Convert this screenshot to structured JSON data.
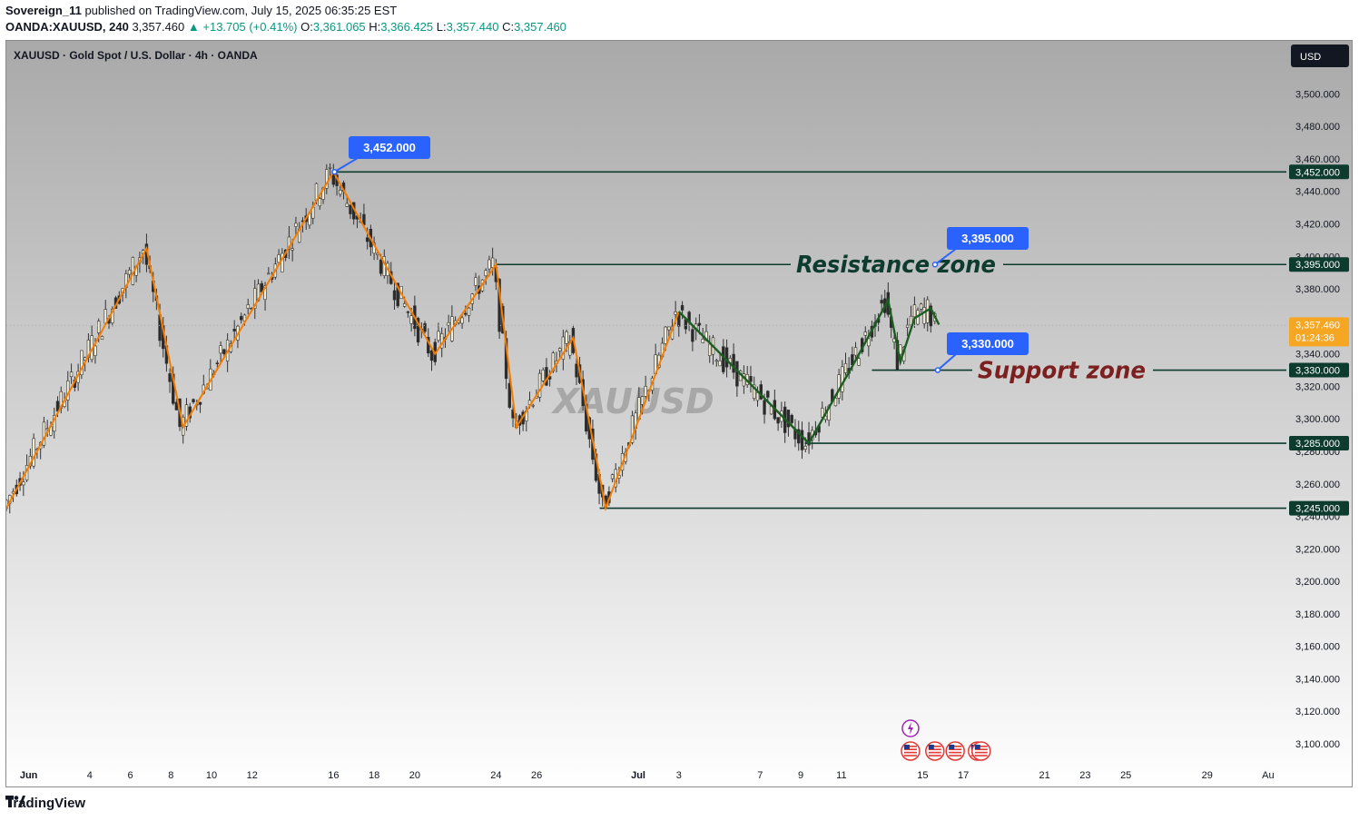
{
  "header": {
    "author": "Sovereign_11",
    "published_text": "published on TradingView.com, July 15, 2025 06:35:25 EST",
    "symbol": "OANDA:XAUUSD, 240",
    "last_price": "3,357.460",
    "change": "▲ +13.705 (+0.41%)",
    "o_label": "O:",
    "o_value": "3,361.065",
    "h_label": "H:",
    "h_value": "3,366.425",
    "l_label": "L:",
    "l_value": "3,357.440",
    "c_label": "C:",
    "c_value": "3,357.460"
  },
  "footer": {
    "brand": "TradingView"
  },
  "colors": {
    "bull_wave": "#f57c00",
    "bear_wave": "#1b5e20",
    "level_line": "#0d3b2e",
    "callout": "#2962ff",
    "support_text": "#7b1f1f",
    "resistance_text": "#0d3b2e",
    "price_line": "#f5a623"
  },
  "chart_data": {
    "type": "candlestick",
    "title": "XAUUSD · Gold Spot / U.S. Dollar · 4h · OANDA",
    "watermark": "XAUUSD",
    "currency": "USD",
    "ylim": [
      3085,
      3515
    ],
    "y_ticks": [
      3100,
      3120,
      3140,
      3160,
      3180,
      3200,
      3220,
      3240,
      3260,
      3280,
      3300,
      3320,
      3340,
      3360,
      3380,
      3400,
      3420,
      3440,
      3460,
      3480,
      3500
    ],
    "x_ticks": [
      {
        "label": "Jun",
        "day": 0
      },
      {
        "label": "4",
        "day": 3
      },
      {
        "label": "6",
        "day": 5
      },
      {
        "label": "8",
        "day": 7
      },
      {
        "label": "10",
        "day": 9
      },
      {
        "label": "12",
        "day": 11
      },
      {
        "label": "16",
        "day": 15
      },
      {
        "label": "18",
        "day": 17
      },
      {
        "label": "20",
        "day": 19
      },
      {
        "label": "24",
        "day": 23
      },
      {
        "label": "26",
        "day": 25
      },
      {
        "label": "Jul",
        "day": 30
      },
      {
        "label": "3",
        "day": 32
      },
      {
        "label": "7",
        "day": 36
      },
      {
        "label": "9",
        "day": 38
      },
      {
        "label": "11",
        "day": 40
      },
      {
        "label": "15",
        "day": 44
      },
      {
        "label": "17",
        "day": 46
      },
      {
        "label": "21",
        "day": 50
      },
      {
        "label": "23",
        "day": 52
      },
      {
        "label": "25",
        "day": 54
      },
      {
        "label": "29",
        "day": 58
      },
      {
        "label": "Au",
        "day": 61
      }
    ],
    "x_domain": [
      -1.1,
      61.9
    ],
    "current_price": {
      "value": 3357.46,
      "label": "3,357.460",
      "countdown": "01:24:36"
    },
    "levels": [
      {
        "value": 3452,
        "label": "3,452.000",
        "from_day": 15,
        "callout": "3,452.000",
        "zone": ""
      },
      {
        "value": 3395,
        "label": "3,395.000",
        "from_day": 23,
        "callout": "3,395.000",
        "zone": "Resistance zone"
      },
      {
        "value": 3330,
        "label": "3,330.000",
        "from_day": 41.5,
        "callout": "3,330.000",
        "zone": "Support zone"
      },
      {
        "value": 3285,
        "label": "3,285.000",
        "from_day": 38.2,
        "callout": "",
        "zone": ""
      },
      {
        "value": 3245,
        "label": "3,245.000",
        "from_day": 28.1,
        "callout": "",
        "zone": ""
      }
    ],
    "zigzag_orange": [
      {
        "day": -1.1,
        "price": 3245
      },
      {
        "day": 5.8,
        "price": 3405
      },
      {
        "day": 7.6,
        "price": 3295
      },
      {
        "day": 15.0,
        "price": 3452
      },
      {
        "day": 20.0,
        "price": 3340
      },
      {
        "day": 23.0,
        "price": 3395
      },
      {
        "day": 24.0,
        "price": 3295
      },
      {
        "day": 26.8,
        "price": 3350
      },
      {
        "day": 28.4,
        "price": 3245
      },
      {
        "day": 32.0,
        "price": 3366
      }
    ],
    "zigzag_green": [
      {
        "day": 32.0,
        "price": 3366
      },
      {
        "day": 38.4,
        "price": 3285
      },
      {
        "day": 40.7,
        "price": 3336
      },
      {
        "day": 42.3,
        "price": 3373
      },
      {
        "day": 42.9,
        "price": 3335
      },
      {
        "day": 43.6,
        "price": 3362
      },
      {
        "day": 44.4,
        "price": 3368
      },
      {
        "day": 44.8,
        "price": 3358
      }
    ],
    "event_icons": [
      {
        "day": 43.4,
        "type": "earnings",
        "count": 1
      },
      {
        "day": 43.4,
        "type": "us-flag",
        "count": 1
      },
      {
        "day": 44.6,
        "type": "us-flag",
        "count": 1
      },
      {
        "day": 45.6,
        "type": "us-flag",
        "count": 1
      },
      {
        "day": 46.7,
        "type": "us-flag",
        "count": 2
      }
    ]
  }
}
